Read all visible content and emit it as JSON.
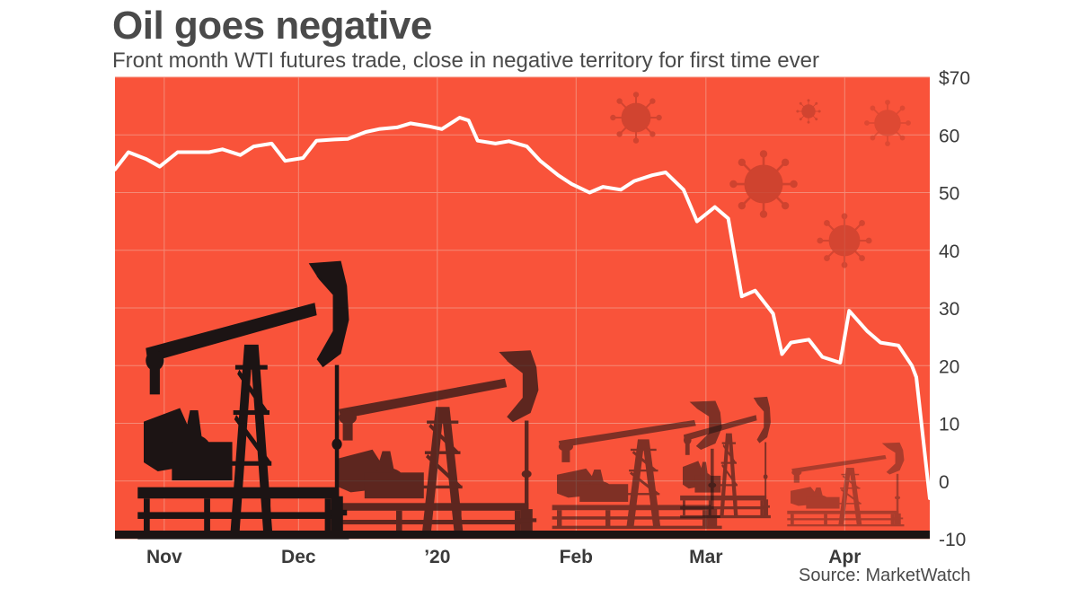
{
  "title": "Oil goes negative",
  "subtitle": "Front month WTI futures trade, close in negative territory for first time ever",
  "source": "Source: MarketWatch",
  "colors": {
    "background": "#f9533a",
    "grid": "#f48a76",
    "line": "#ffffff",
    "silhouette": "#1c1414",
    "virus": "#c8412e"
  },
  "icons": [
    "pumpjack-silhouette",
    "virus-icon"
  ],
  "chart_data": {
    "type": "line",
    "title": "Oil goes negative",
    "xlabel": "",
    "ylabel": "",
    "ylim": [
      -10,
      70
    ],
    "yticks": [
      -10,
      0,
      10,
      20,
      30,
      40,
      50,
      60,
      70
    ],
    "ytick_labels": [
      "-10",
      "0",
      "10",
      "20",
      "30",
      "40",
      "50",
      "60",
      "$70"
    ],
    "xtick_labels": [
      "Nov",
      "Dec",
      "’20",
      "Feb",
      "Mar",
      "Apr"
    ],
    "xtick_dates": [
      "2019-11-01",
      "2019-12-01",
      "2020-01-01",
      "2020-02-01",
      "2020-03-01",
      "2020-04-01"
    ],
    "grid": true,
    "series": [
      {
        "x": [
          "2019-10-21",
          "2019-10-24",
          "2019-10-28",
          "2019-10-31",
          "2019-11-04",
          "2019-11-07",
          "2019-11-11",
          "2019-11-14",
          "2019-11-18",
          "2019-11-21",
          "2019-11-25",
          "2019-11-28",
          "2019-12-02",
          "2019-12-05",
          "2019-12-09",
          "2019-12-12",
          "2019-12-16",
          "2019-12-19",
          "2019-12-23",
          "2019-12-26",
          "2019-12-30",
          "2020-01-02",
          "2020-01-06",
          "2020-01-08",
          "2020-01-10",
          "2020-01-14",
          "2020-01-17",
          "2020-01-21",
          "2020-01-24",
          "2020-01-28",
          "2020-01-31",
          "2020-02-04",
          "2020-02-07",
          "2020-02-11",
          "2020-02-14",
          "2020-02-18",
          "2020-02-21",
          "2020-02-25",
          "2020-02-28",
          "2020-03-03",
          "2020-03-06",
          "2020-03-09",
          "2020-03-12",
          "2020-03-16",
          "2020-03-18",
          "2020-03-20",
          "2020-03-24",
          "2020-03-27",
          "2020-03-31",
          "2020-04-02",
          "2020-04-06",
          "2020-04-09",
          "2020-04-13",
          "2020-04-16",
          "2020-04-17",
          "2020-04-20"
        ],
        "y": [
          54.0,
          57.0,
          55.8,
          54.5,
          57.0,
          57.0,
          57.0,
          57.5,
          56.5,
          58.0,
          58.5,
          55.5,
          56.0,
          59.0,
          59.2,
          59.3,
          60.5,
          61.0,
          61.3,
          62.0,
          61.5,
          61.0,
          63.0,
          62.5,
          59.0,
          58.5,
          58.9,
          58.0,
          55.5,
          53.0,
          51.5,
          50.0,
          51.0,
          50.5,
          52.0,
          53.0,
          53.5,
          50.5,
          45.0,
          47.5,
          45.5,
          32.0,
          33.0,
          29.0,
          22.0,
          24.0,
          24.5,
          21.5,
          20.5,
          29.5,
          26.0,
          24.0,
          23.5,
          20.0,
          18.0,
          -3.0
        ]
      }
    ]
  }
}
